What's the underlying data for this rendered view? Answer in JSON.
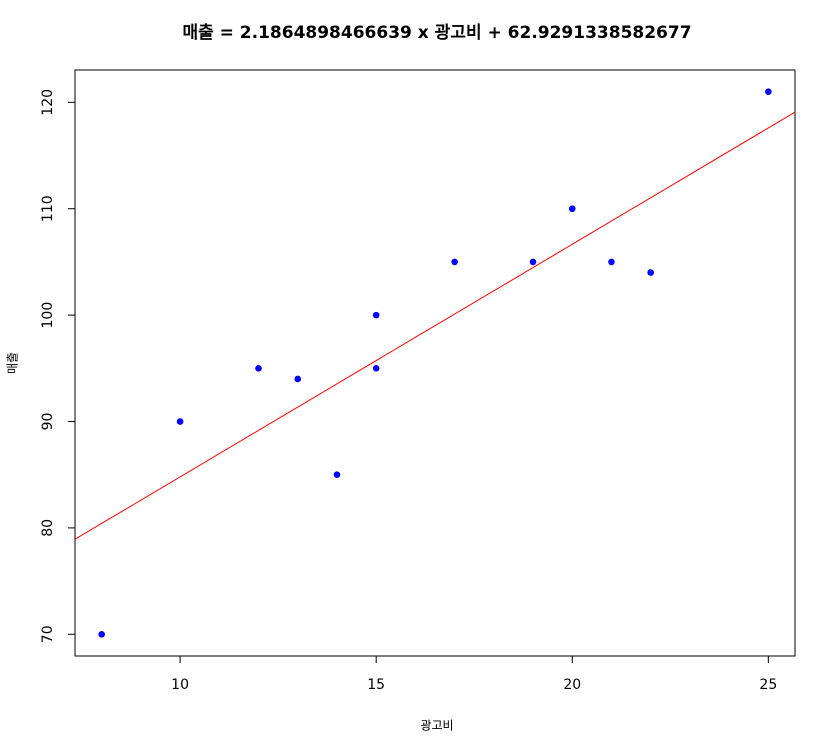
{
  "chart_data": {
    "type": "scatter",
    "title": "매출 =  2.1864898466639 x 광고비 +  62.9291338582677",
    "x_label": "광고비",
    "y_label": "매출",
    "x": [
      8,
      10,
      12,
      13,
      14,
      15,
      15,
      17,
      19,
      20,
      21,
      22,
      25
    ],
    "series": [
      {
        "values": [
          70,
          90,
          95,
          94,
          85,
          95,
          100,
          105,
          105,
          110,
          105,
          104,
          121
        ],
        "color": "#0000ff"
      }
    ],
    "fit_line": {
      "slope": 2.1864898466639,
      "intercept": 62.9291338582677,
      "color": "#ff0000"
    },
    "xlim": [
      7.32,
      25.68
    ],
    "ylim": [
      67.96,
      123.04
    ],
    "xticks": [
      10,
      15,
      20,
      25
    ],
    "yticks": [
      70,
      80,
      90,
      100,
      110,
      120
    ]
  }
}
